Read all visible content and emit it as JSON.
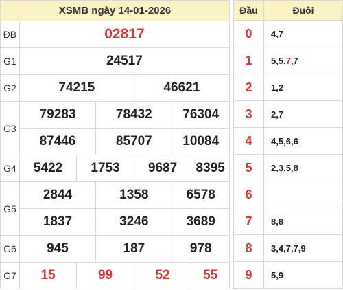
{
  "title": "XSMB ngày 14-01-2026",
  "prizes": [
    {
      "label": "ĐB",
      "numbers": [
        "02817"
      ]
    },
    {
      "label": "G1",
      "numbers": [
        "24517"
      ]
    },
    {
      "label": "G2",
      "numbers": [
        "74215",
        "46621"
      ]
    },
    {
      "label": "G3",
      "numbers": [
        "79283",
        "78432",
        "76304",
        "87446",
        "85707",
        "10084"
      ]
    },
    {
      "label": "G4",
      "numbers": [
        "5422",
        "1753",
        "9687",
        "8395"
      ]
    },
    {
      "label": "G5",
      "numbers": [
        "2844",
        "1358",
        "6578",
        "1837",
        "3246",
        "3689"
      ]
    },
    {
      "label": "G6",
      "numbers": [
        "945",
        "187",
        "978"
      ]
    },
    {
      "label": "G7",
      "numbers": [
        "15",
        "99",
        "52",
        "55"
      ]
    }
  ],
  "loto": {
    "header_dau": "Đầu",
    "header_duoi": "Đuôi",
    "rows": [
      {
        "dau": "0",
        "duoi": [
          "4",
          "7"
        ]
      },
      {
        "dau": "1",
        "duoi": [
          "5",
          "5",
          "7",
          "7"
        ],
        "highlight_index": 2
      },
      {
        "dau": "2",
        "duoi": [
          "1",
          "2"
        ]
      },
      {
        "dau": "3",
        "duoi": [
          "2",
          "7"
        ]
      },
      {
        "dau": "4",
        "duoi": [
          "4",
          "5",
          "6",
          "6"
        ]
      },
      {
        "dau": "5",
        "duoi": [
          "2",
          "3",
          "5",
          "8"
        ]
      },
      {
        "dau": "6",
        "duoi": []
      },
      {
        "dau": "7",
        "duoi": [
          "8",
          "8"
        ]
      },
      {
        "dau": "8",
        "duoi": [
          "3",
          "4",
          "7",
          "7",
          "9"
        ]
      },
      {
        "dau": "9",
        "duoi": [
          "5",
          "9"
        ]
      }
    ]
  },
  "colors": {
    "accent_red": "#dd3333",
    "header_bg": "#fbf3c5",
    "border": "#d9d9d9"
  }
}
